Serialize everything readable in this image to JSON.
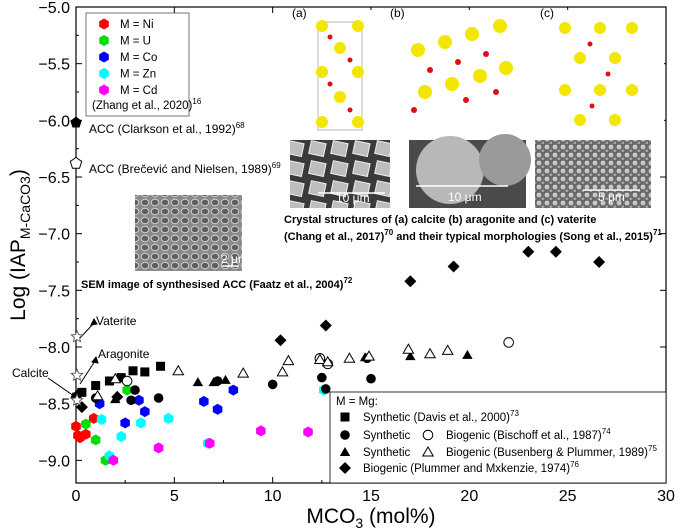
{
  "chart_data": {
    "type": "scatter",
    "xlabel_main": "MCO",
    "xlabel_sub": "3",
    "xlabel_rest": " (mol%)",
    "ylabel_main": "Log (IAP",
    "ylabel_sub": "M-CaCO3",
    "ylabel_rest": ")",
    "xlim": [
      0,
      30
    ],
    "ylim": [
      -9.2,
      -5.0
    ],
    "xticks": [
      0,
      5,
      10,
      15,
      20,
      25,
      30
    ],
    "yticks": [
      -5.0,
      -5.5,
      -6.0,
      -6.5,
      -7.0,
      -7.5,
      -8.0,
      -8.5,
      -9.0
    ],
    "xtick_labels": [
      "0",
      "5",
      "10",
      "15",
      "20",
      "25",
      "30"
    ],
    "ytick_labels": [
      "−5.0",
      "−5.5",
      "−6.0",
      "−6.5",
      "−7.0",
      "−7.5",
      "−8.0",
      "−8.5",
      "−9.0"
    ],
    "metal_legend": {
      "items": [
        {
          "label": "M = Ni",
          "color": "#ff0000"
        },
        {
          "label": "M = U",
          "color": "#00dd00"
        },
        {
          "label": "M = Co",
          "color": "#0000ff"
        },
        {
          "label": "M = Zn",
          "color": "#00ffff"
        },
        {
          "label": "M = Cd",
          "color": "#ff00ff"
        }
      ],
      "citation": "(Zhang et al., 2020)",
      "citation_ref": "16"
    },
    "mg_legend": {
      "title": "M = Mg:",
      "rows": [
        {
          "text_a": "Synthetic (Davis et al., 2000)",
          "ref": "73"
        },
        {
          "text_a": "Synthetic",
          "text_b": "Biogenic (Bischoff et al., 1987)",
          "ref": "74"
        },
        {
          "text_a": "Synthetic",
          "text_b": "Biogenic (Busenberg & Plummer, 1989)",
          "ref": "75"
        },
        {
          "text_a": "Biogenic (Plummer and Mxkenzie, 1974)",
          "ref": "76"
        }
      ]
    },
    "reference_points": [
      {
        "label": "ACC (Clarkson et al., 1992)",
        "ref": "68",
        "x": 0,
        "y": -6.02,
        "marker": "pentagon-filled"
      },
      {
        "label": "ACC (Brečević and Nielsen, 1989)",
        "ref": "69",
        "x": 0,
        "y": -6.38,
        "marker": "pentagon-open"
      },
      {
        "label": "Vaterite",
        "x": 0.05,
        "y": -7.91,
        "marker": "star-open"
      },
      {
        "label": "Aragonite",
        "x": 0.05,
        "y": -8.25,
        "marker": "star-open"
      },
      {
        "label": "Calcite",
        "x": 0.05,
        "y": -8.47,
        "marker": "star-open"
      }
    ],
    "series": [
      {
        "name": "Ni",
        "marker": "hexagon",
        "color": "#ff0000",
        "x": [
          0.0,
          0.1,
          0.2,
          0.5,
          0.9
        ],
        "y": [
          -8.7,
          -8.78,
          -8.8,
          -8.77,
          -8.63
        ]
      },
      {
        "name": "U",
        "marker": "hexagon",
        "color": "#00dd00",
        "x": [
          0.5,
          1.0,
          1.5,
          2.6
        ],
        "y": [
          -8.68,
          -8.82,
          -9.0,
          -8.38
        ]
      },
      {
        "name": "Co",
        "marker": "hexagon",
        "color": "#0000ff",
        "x": [
          1.2,
          2.5,
          3.2,
          3.5,
          6.5,
          7.2,
          8.0
        ],
        "y": [
          -8.5,
          -8.67,
          -8.47,
          -8.57,
          -8.48,
          -8.55,
          -8.38
        ]
      },
      {
        "name": "Zn",
        "marker": "hexagon",
        "color": "#00ffff",
        "x": [
          1.3,
          1.7,
          2.3,
          3.3,
          4.7,
          6.7,
          12.6
        ],
        "y": [
          -8.64,
          -8.96,
          -8.79,
          -8.67,
          -8.63,
          -8.85,
          -8.38
        ]
      },
      {
        "name": "Cd",
        "marker": "hexagon",
        "color": "#ff00ff",
        "x": [
          1.9,
          4.2,
          6.8,
          9.4,
          11.8
        ],
        "y": [
          -9.0,
          -8.89,
          -8.85,
          -8.74,
          -8.75
        ]
      },
      {
        "name": "Synthetic (Davis et al., 2000)",
        "marker": "square-filled",
        "color": "#000000",
        "x": [
          0.3,
          1.0,
          1.7,
          2.3,
          2.9,
          3.5,
          4.3
        ],
        "y": [
          -8.4,
          -8.34,
          -8.3,
          -8.27,
          -8.21,
          -8.22,
          -8.17
        ]
      },
      {
        "name": "Synthetic (Bischoff et al., 1987)",
        "marker": "circle-filled",
        "color": "#000000",
        "x": [
          1.0,
          2.8,
          3.0,
          4.2,
          7.2,
          10.0,
          12.5,
          12.7,
          14.8,
          15.0
        ],
        "y": [
          -8.45,
          -8.47,
          -8.38,
          -8.45,
          -8.3,
          -8.33,
          -8.27,
          -8.37,
          -8.1,
          -8.28
        ]
      },
      {
        "name": "Biogenic (Bischoff et al., 1987)",
        "marker": "circle-open",
        "color": "#000000",
        "x": [
          2.6,
          12.4,
          12.8,
          22.0
        ],
        "y": [
          -8.3,
          -8.1,
          -8.15,
          -7.96
        ]
      },
      {
        "name": "Synthetic (Busenberg & Plummer, 1989)",
        "marker": "triangle-filled",
        "color": "#000000",
        "x": [
          2.0,
          6.2,
          7.0,
          7.6,
          14.7,
          17.0,
          19.9
        ],
        "y": [
          -8.46,
          -8.31,
          -8.31,
          -8.29,
          -8.09,
          -8.08,
          -8.07
        ]
      },
      {
        "name": "Biogenic (Busenberg & Plummer, 1989)",
        "marker": "triangle-open",
        "color": "#000000",
        "x": [
          1.1,
          2.0,
          5.2,
          8.5,
          10.5,
          10.8,
          12.4,
          12.8,
          13.9,
          14.9,
          16.9,
          18.0,
          18.9
        ],
        "y": [
          -8.43,
          -8.28,
          -8.21,
          -8.23,
          -8.22,
          -8.12,
          -8.11,
          -8.13,
          -8.1,
          -8.08,
          -8.02,
          -8.06,
          -8.03
        ]
      },
      {
        "name": "Biogenic (Plummer and Mxkenzie, 1974)",
        "marker": "diamond-filled",
        "color": "#000000",
        "x": [
          0.1,
          0.3,
          2.1,
          10.4,
          12.7,
          17.0,
          19.2,
          23.0,
          24.4,
          26.6
        ],
        "y": [
          -8.42,
          -8.53,
          -8.44,
          -7.94,
          -7.81,
          -7.42,
          -7.29,
          -7.16,
          -7.16,
          -7.25
        ]
      }
    ],
    "annotations": {
      "crystal_caption_line1": "Crystal structures of (a) calcite (b) aragonite and (c) vaterite",
      "crystal_caption_line2": "(Chang et al., 2017)",
      "crystal_caption_ref2": "70",
      "crystal_caption_line2b": " and their typical morphologies (Song et al., 2015)",
      "crystal_caption_ref2b": "71",
      "sem_caption": "SEM image of synthesised ACC (Faatz et al., 2004)",
      "sem_caption_ref": "72",
      "panel_a": "(a)",
      "panel_b": "(b)",
      "panel_c": "(c)",
      "scale_a": "10 μm",
      "scale_b": "10 μm",
      "scale_c": "5 μm",
      "scale_sem": "2 μm"
    }
  }
}
